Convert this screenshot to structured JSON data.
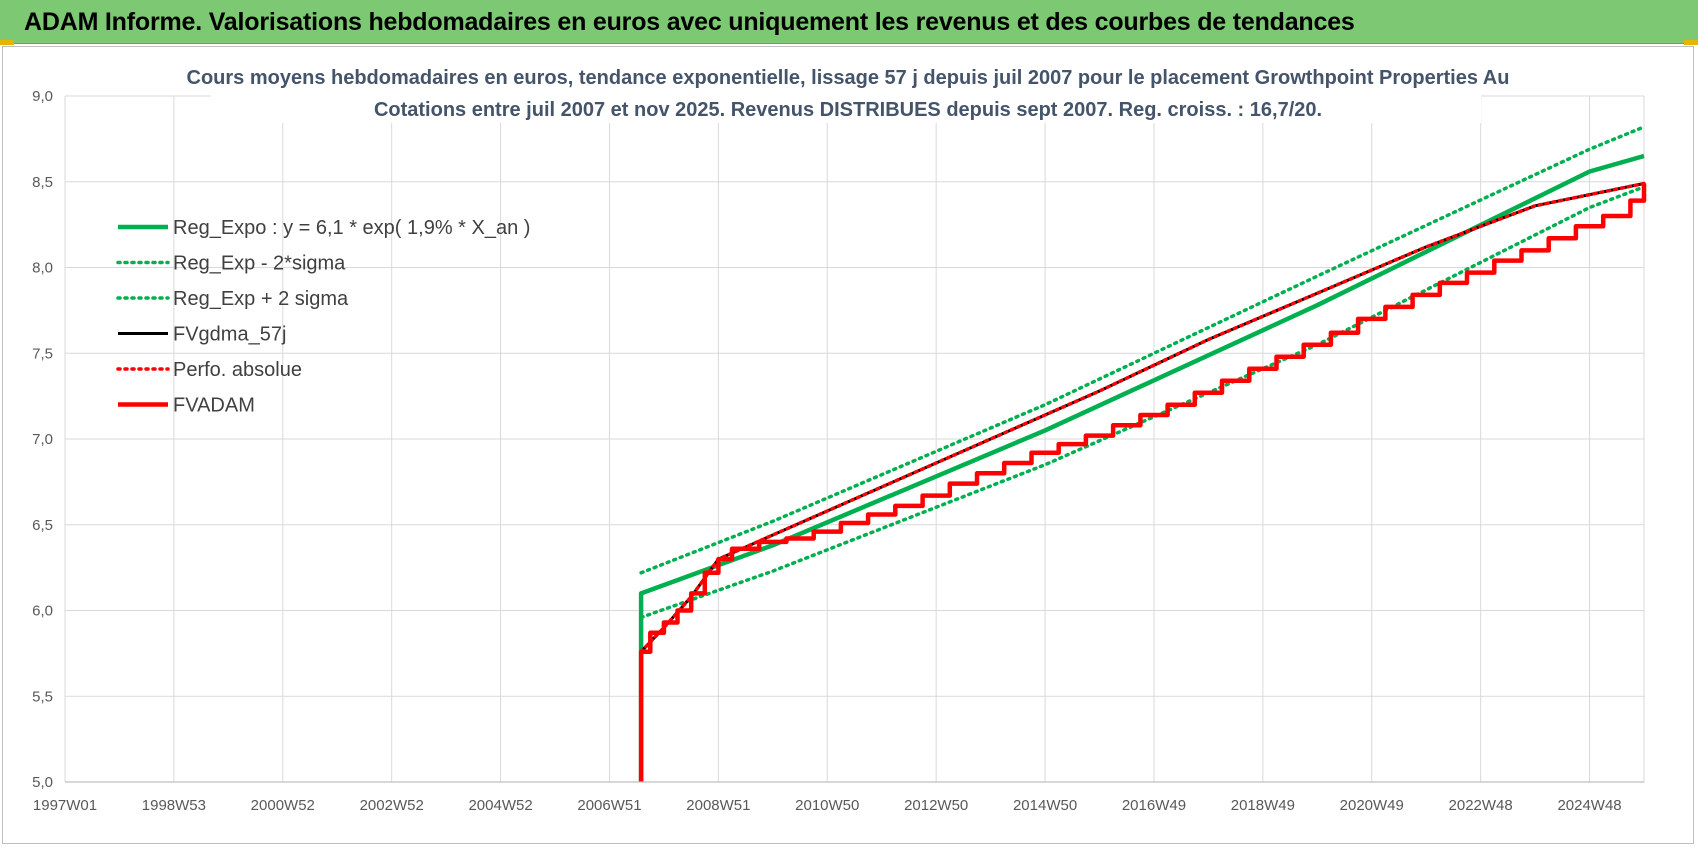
{
  "page": {
    "banner_title": "ADAM Informe. Valorisations hebdomadaires en euros avec uniquement les revenus et des courbes de tendances"
  },
  "colors": {
    "banner_bg": "#7dc873",
    "regression": "#00b050",
    "gdma": "#000000",
    "perfo": "#ff0000",
    "adam": "#ff0000",
    "grid": "#d9d9d9"
  },
  "chart_data": {
    "type": "line",
    "title_lines": [
      "Cours moyens  hebdomadaires en euros, tendance exponentielle, lissage 57 j depuis juil 2007 pour le placement Growthpoint Properties Au",
      "Cotations entre juil 2007 et nov 2025. Revenus DISTRIBUES depuis sept 2007. Reg. croiss. : 16,7/20."
    ],
    "x_tick_labels": [
      "1997W01",
      "1998W53",
      "2000W52",
      "2002W52",
      "2004W52",
      "2006W51",
      "2008W51",
      "2010W50",
      "2012W50",
      "2014W50",
      "2016W49",
      "2018W49",
      "2020W49",
      "2022W48",
      "2024W48"
    ],
    "x_tick_years": [
      1997.0,
      1999.0,
      2001.0,
      2003.0,
      2005.0,
      2007.0,
      2009.0,
      2011.0,
      2013.0,
      2015.0,
      2017.0,
      2019.0,
      2021.0,
      2023.0,
      2025.0
    ],
    "x_range": [
      1997.0,
      2026.0
    ],
    "ylim": [
      5.0,
      9.0
    ],
    "y_ticks": [
      5.0,
      5.5,
      6.0,
      6.5,
      7.0,
      7.5,
      8.0,
      8.5,
      9.0
    ],
    "y_tick_labels": [
      "5,0",
      "5,5",
      "6,0",
      "6,5",
      "7,0",
      "7,5",
      "8,0",
      "8,5",
      "9,0"
    ],
    "grid": true,
    "legend_position": "top-left",
    "series": [
      {
        "name": "Reg_Expo : y = 6,1 * exp( 1,9% *  X_an )",
        "style": "solid-thick",
        "color": "#00b050",
        "points": [
          [
            2007.58,
            5.0
          ],
          [
            2007.58,
            6.1
          ],
          [
            2010.0,
            6.38
          ],
          [
            2015.0,
            7.05
          ],
          [
            2020.0,
            7.78
          ],
          [
            2025.0,
            8.56
          ],
          [
            2026.0,
            8.65
          ]
        ]
      },
      {
        "name": "Reg_Exp - 2*sigma",
        "style": "dotted",
        "color": "#00b050",
        "points": [
          [
            2007.58,
            5.96
          ],
          [
            2010.0,
            6.23
          ],
          [
            2015.0,
            6.85
          ],
          [
            2020.0,
            7.55
          ],
          [
            2025.0,
            8.35
          ],
          [
            2026.0,
            8.47
          ]
        ]
      },
      {
        "name": "Reg_Exp + 2 sigma",
        "style": "dotted",
        "color": "#00b050",
        "points": [
          [
            2007.58,
            6.22
          ],
          [
            2010.0,
            6.52
          ],
          [
            2015.0,
            7.2
          ],
          [
            2020.0,
            7.95
          ],
          [
            2025.0,
            8.69
          ],
          [
            2026.0,
            8.82
          ]
        ]
      },
      {
        "name": "FVgdma_57j",
        "style": "solid",
        "color": "#000000",
        "points": [
          [
            2007.58,
            5.76
          ],
          [
            2008.0,
            5.9
          ],
          [
            2008.5,
            6.08
          ],
          [
            2009.0,
            6.3
          ],
          [
            2010.0,
            6.44
          ],
          [
            2012.0,
            6.72
          ],
          [
            2014.0,
            7.0
          ],
          [
            2016.0,
            7.28
          ],
          [
            2018.0,
            7.58
          ],
          [
            2020.0,
            7.85
          ],
          [
            2022.0,
            8.12
          ],
          [
            2024.0,
            8.36
          ],
          [
            2026.0,
            8.49
          ]
        ]
      },
      {
        "name": "Perfo. absolue",
        "style": "dotted",
        "color": "#ff0000",
        "points": [
          [
            2007.58,
            5.76
          ],
          [
            2008.0,
            5.9
          ],
          [
            2008.5,
            6.08
          ],
          [
            2009.0,
            6.3
          ],
          [
            2010.0,
            6.44
          ],
          [
            2012.0,
            6.72
          ],
          [
            2014.0,
            7.0
          ],
          [
            2016.0,
            7.28
          ],
          [
            2018.0,
            7.58
          ],
          [
            2020.0,
            7.85
          ],
          [
            2022.0,
            8.12
          ],
          [
            2024.0,
            8.36
          ],
          [
            2026.0,
            8.49
          ]
        ]
      },
      {
        "name": "FVADAM",
        "style": "solid-thick",
        "color": "#ff0000",
        "step_levels": [
          [
            2007.58,
            5.76
          ],
          [
            2007.75,
            5.87
          ],
          [
            2008.0,
            5.93
          ],
          [
            2008.25,
            6.0
          ],
          [
            2008.5,
            6.1
          ],
          [
            2008.75,
            6.22
          ],
          [
            2009.0,
            6.3
          ],
          [
            2009.25,
            6.36
          ],
          [
            2009.75,
            6.4
          ],
          [
            2010.25,
            6.42
          ],
          [
            2010.75,
            6.46
          ],
          [
            2011.25,
            6.51
          ],
          [
            2011.75,
            6.56
          ],
          [
            2012.25,
            6.61
          ],
          [
            2012.75,
            6.67
          ],
          [
            2013.25,
            6.74
          ],
          [
            2013.75,
            6.8
          ],
          [
            2014.25,
            6.86
          ],
          [
            2014.75,
            6.92
          ],
          [
            2015.25,
            6.97
          ],
          [
            2015.75,
            7.02
          ],
          [
            2016.25,
            7.08
          ],
          [
            2016.75,
            7.14
          ],
          [
            2017.25,
            7.2
          ],
          [
            2017.75,
            7.27
          ],
          [
            2018.25,
            7.34
          ],
          [
            2018.75,
            7.41
          ],
          [
            2019.25,
            7.48
          ],
          [
            2019.75,
            7.55
          ],
          [
            2020.25,
            7.62
          ],
          [
            2020.75,
            7.7
          ],
          [
            2021.25,
            7.77
          ],
          [
            2021.75,
            7.84
          ],
          [
            2022.25,
            7.91
          ],
          [
            2022.75,
            7.97
          ],
          [
            2023.25,
            8.04
          ],
          [
            2023.75,
            8.1
          ],
          [
            2024.25,
            8.17
          ],
          [
            2024.75,
            8.24
          ],
          [
            2025.25,
            8.3
          ],
          [
            2025.75,
            8.39
          ],
          [
            2026.0,
            8.49
          ]
        ]
      }
    ]
  }
}
